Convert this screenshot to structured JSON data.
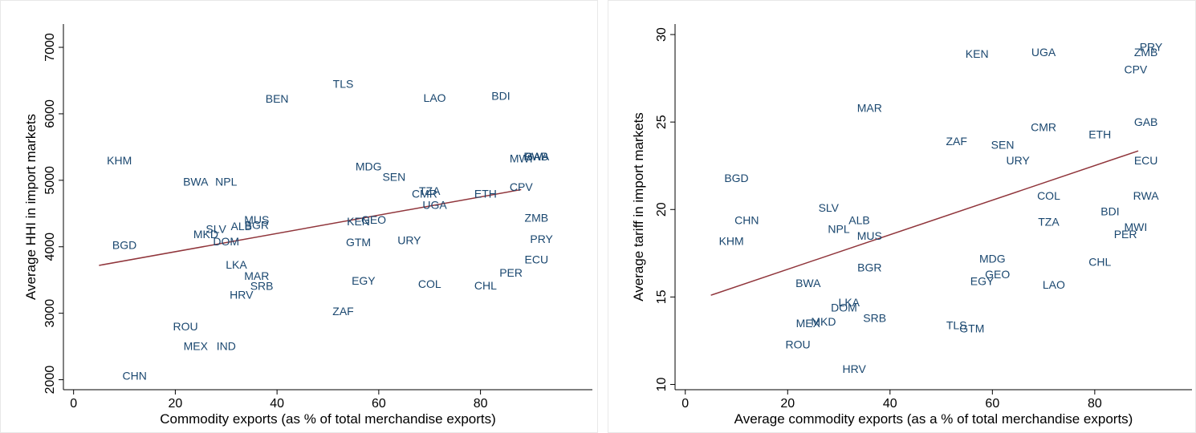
{
  "chart_data": [
    {
      "type": "scatter",
      "xlabel": "Commodity exports (as % of total merchandise exports)",
      "ylabel": "Average HHI in import markets",
      "xlim": [
        -2,
        102
      ],
      "ylim": [
        1850,
        7350
      ],
      "xticks": [
        0,
        20,
        40,
        60,
        80
      ],
      "yticks": [
        2000,
        3000,
        4000,
        5000,
        6000,
        7000
      ],
      "grid": false,
      "legend": "none",
      "colors": {
        "label": "#1a476f",
        "fit_line": "#90353b",
        "axis": "#000000"
      },
      "fit_line": {
        "x": [
          5,
          88
        ],
        "y": [
          3720,
          4860
        ]
      },
      "points": [
        {
          "label": "TLS",
          "x": 53,
          "y": 6450
        },
        {
          "label": "BEN",
          "x": 40,
          "y": 6230
        },
        {
          "label": "LAO",
          "x": 71,
          "y": 6240
        },
        {
          "label": "BDI",
          "x": 84,
          "y": 6270
        },
        {
          "label": "KHM",
          "x": 9,
          "y": 5300
        },
        {
          "label": "MDG",
          "x": 58,
          "y": 5210
        },
        {
          "label": "MWI",
          "x": 88,
          "y": 5330
        },
        {
          "label": "RWA",
          "x": 91,
          "y": 5360
        },
        {
          "label": "GAB",
          "x": 91,
          "y": 5360
        },
        {
          "label": "BWA",
          "x": 24,
          "y": 4980
        },
        {
          "label": "NPL",
          "x": 30,
          "y": 4980
        },
        {
          "label": "SEN",
          "x": 63,
          "y": 5050
        },
        {
          "label": "CPV",
          "x": 88,
          "y": 4900
        },
        {
          "label": "TZA",
          "x": 70,
          "y": 4840
        },
        {
          "label": "CMR",
          "x": 69,
          "y": 4800
        },
        {
          "label": "ETH",
          "x": 81,
          "y": 4800
        },
        {
          "label": "UGA",
          "x": 71,
          "y": 4630
        },
        {
          "label": "MUS",
          "x": 36,
          "y": 4410
        },
        {
          "label": "BGR",
          "x": 36,
          "y": 4330
        },
        {
          "label": "ALB",
          "x": 33,
          "y": 4310
        },
        {
          "label": "KEN",
          "x": 56,
          "y": 4380
        },
        {
          "label": "GEO",
          "x": 59,
          "y": 4410
        },
        {
          "label": "ZMB",
          "x": 91,
          "y": 4440
        },
        {
          "label": "SLV",
          "x": 28,
          "y": 4270
        },
        {
          "label": "MKD",
          "x": 26,
          "y": 4190
        },
        {
          "label": "DOM",
          "x": 30,
          "y": 4080
        },
        {
          "label": "BGD",
          "x": 10,
          "y": 4030
        },
        {
          "label": "GTM",
          "x": 56,
          "y": 4070
        },
        {
          "label": "URY",
          "x": 66,
          "y": 4100
        },
        {
          "label": "PRY",
          "x": 92,
          "y": 4120
        },
        {
          "label": "ECU",
          "x": 91,
          "y": 3810
        },
        {
          "label": "LKA",
          "x": 32,
          "y": 3730
        },
        {
          "label": "MAR",
          "x": 36,
          "y": 3560
        },
        {
          "label": "PER",
          "x": 86,
          "y": 3610
        },
        {
          "label": "SRB",
          "x": 37,
          "y": 3410
        },
        {
          "label": "EGY",
          "x": 57,
          "y": 3490
        },
        {
          "label": "COL",
          "x": 70,
          "y": 3440
        },
        {
          "label": "CHL",
          "x": 81,
          "y": 3420
        },
        {
          "label": "HRV",
          "x": 33,
          "y": 3280
        },
        {
          "label": "ZAF",
          "x": 53,
          "y": 3030
        },
        {
          "label": "ROU",
          "x": 22,
          "y": 2800
        },
        {
          "label": "MEX",
          "x": 24,
          "y": 2510
        },
        {
          "label": "IND",
          "x": 30,
          "y": 2510
        },
        {
          "label": "CHN",
          "x": 12,
          "y": 2060
        }
      ]
    },
    {
      "type": "scatter",
      "xlabel": "Average commodity exports (as a % of total merchandise exports)",
      "ylabel": "Average tariff in import markets",
      "xlim": [
        -2,
        99
      ],
      "ylim": [
        9.7,
        30.6
      ],
      "xticks": [
        0,
        20,
        40,
        60,
        80
      ],
      "yticks": [
        10,
        15,
        20,
        25,
        30
      ],
      "grid": false,
      "legend": "none",
      "colors": {
        "label": "#1a476f",
        "fit_line": "#90353b",
        "axis": "#000000"
      },
      "fit_line": {
        "x": [
          5,
          88.5
        ],
        "y": [
          15.1,
          23.35
        ]
      },
      "points": [
        {
          "label": "PRY",
          "x": 91,
          "y": 29.3
        },
        {
          "label": "ZMB",
          "x": 90,
          "y": 29.0
        },
        {
          "label": "UGA",
          "x": 70,
          "y": 29.0
        },
        {
          "label": "KEN",
          "x": 57,
          "y": 28.9
        },
        {
          "label": "CPV",
          "x": 88,
          "y": 28.0
        },
        {
          "label": "MAR",
          "x": 36,
          "y": 25.8
        },
        {
          "label": "GAB",
          "x": 90,
          "y": 25.0
        },
        {
          "label": "CMR",
          "x": 70,
          "y": 24.7
        },
        {
          "label": "ETH",
          "x": 81,
          "y": 24.3
        },
        {
          "label": "ZAF",
          "x": 53,
          "y": 23.9
        },
        {
          "label": "SEN",
          "x": 62,
          "y": 23.7
        },
        {
          "label": "URY",
          "x": 65,
          "y": 22.8
        },
        {
          "label": "ECU",
          "x": 90,
          "y": 22.8
        },
        {
          "label": "BGD",
          "x": 10,
          "y": 21.8
        },
        {
          "label": "COL",
          "x": 71,
          "y": 20.8
        },
        {
          "label": "RWA",
          "x": 90,
          "y": 20.8
        },
        {
          "label": "SLV",
          "x": 28,
          "y": 20.1
        },
        {
          "label": "BDI",
          "x": 83,
          "y": 19.9
        },
        {
          "label": "CHN",
          "x": 12,
          "y": 19.4
        },
        {
          "label": "ALB",
          "x": 34,
          "y": 19.4
        },
        {
          "label": "TZA",
          "x": 71,
          "y": 19.3
        },
        {
          "label": "MWI",
          "x": 88,
          "y": 19.0
        },
        {
          "label": "NPL",
          "x": 30,
          "y": 18.9
        },
        {
          "label": "PER",
          "x": 86,
          "y": 18.6
        },
        {
          "label": "MUS",
          "x": 36,
          "y": 18.5
        },
        {
          "label": "KHM",
          "x": 9,
          "y": 18.2
        },
        {
          "label": "MDG",
          "x": 60,
          "y": 17.2
        },
        {
          "label": "CHL",
          "x": 81,
          "y": 17.0
        },
        {
          "label": "BGR",
          "x": 36,
          "y": 16.7
        },
        {
          "label": "GEO",
          "x": 61,
          "y": 16.3
        },
        {
          "label": "EGY",
          "x": 58,
          "y": 15.9
        },
        {
          "label": "BWA",
          "x": 24,
          "y": 15.8
        },
        {
          "label": "LAO",
          "x": 72,
          "y": 15.7
        },
        {
          "label": "LKA",
          "x": 32,
          "y": 14.7
        },
        {
          "label": "DOM",
          "x": 31,
          "y": 14.4
        },
        {
          "label": "SRB",
          "x": 37,
          "y": 13.8
        },
        {
          "label": "MKD",
          "x": 27,
          "y": 13.6
        },
        {
          "label": "MEX",
          "x": 24,
          "y": 13.5
        },
        {
          "label": "TLS",
          "x": 53,
          "y": 13.4
        },
        {
          "label": "GTM",
          "x": 56,
          "y": 13.2
        },
        {
          "label": "ROU",
          "x": 22,
          "y": 12.3
        },
        {
          "label": "HRV",
          "x": 33,
          "y": 10.9
        }
      ]
    }
  ]
}
